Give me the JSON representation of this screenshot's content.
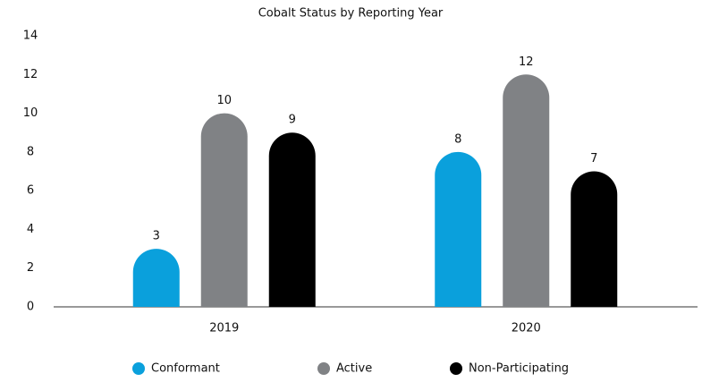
{
  "chart_data": {
    "type": "bar",
    "title": "Cobalt Status by Reporting Year",
    "categories": [
      "2019",
      "2020"
    ],
    "series": [
      {
        "name": "Conformant",
        "color": "#0aa0dc",
        "values": [
          3,
          8
        ]
      },
      {
        "name": "Active",
        "color": "#808285",
        "values": [
          10,
          12
        ]
      },
      {
        "name": "Non-Participating",
        "color": "#000000",
        "values": [
          9,
          7
        ]
      }
    ],
    "ylim": [
      0,
      14
    ],
    "yticks": [
      0,
      2,
      4,
      6,
      8,
      10,
      12,
      14
    ],
    "grid": false,
    "legend": "bottom"
  }
}
